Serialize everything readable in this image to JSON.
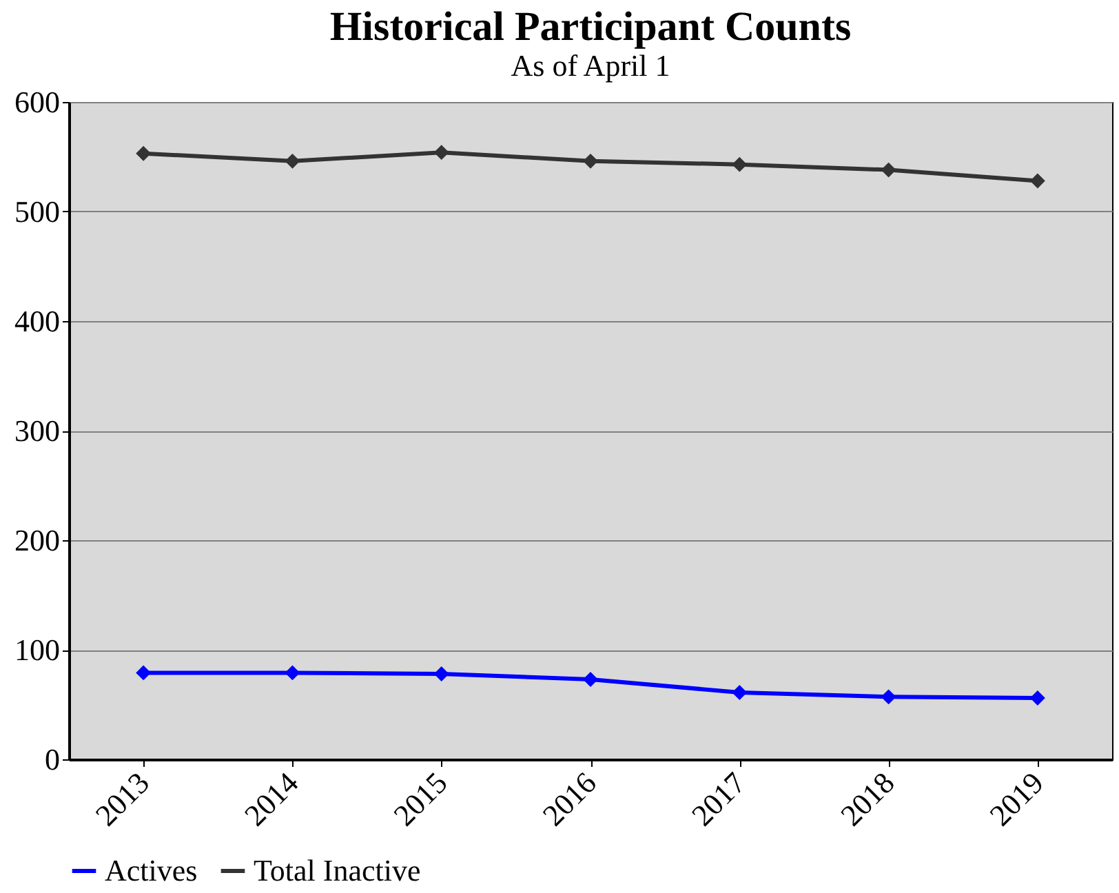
{
  "chart_data": {
    "type": "line",
    "title": "Historical Participant Counts",
    "subtitle": "As of April 1",
    "categories": [
      "2013",
      "2014",
      "2015",
      "2016",
      "2017",
      "2018",
      "2019"
    ],
    "series": [
      {
        "name": "Actives",
        "color": "#0000ff",
        "values": [
          79,
          79,
          78,
          73,
          61,
          57,
          56
        ]
      },
      {
        "name": "Total Inactive",
        "color": "#333333",
        "values": [
          553,
          546,
          554,
          546,
          543,
          538,
          528
        ]
      }
    ],
    "ylim": [
      0,
      600
    ],
    "yticks": [
      0,
      100,
      200,
      300,
      400,
      500,
      600
    ],
    "grid": "y",
    "legend": "bottom",
    "marker": "diamond",
    "line_style": "solid"
  }
}
